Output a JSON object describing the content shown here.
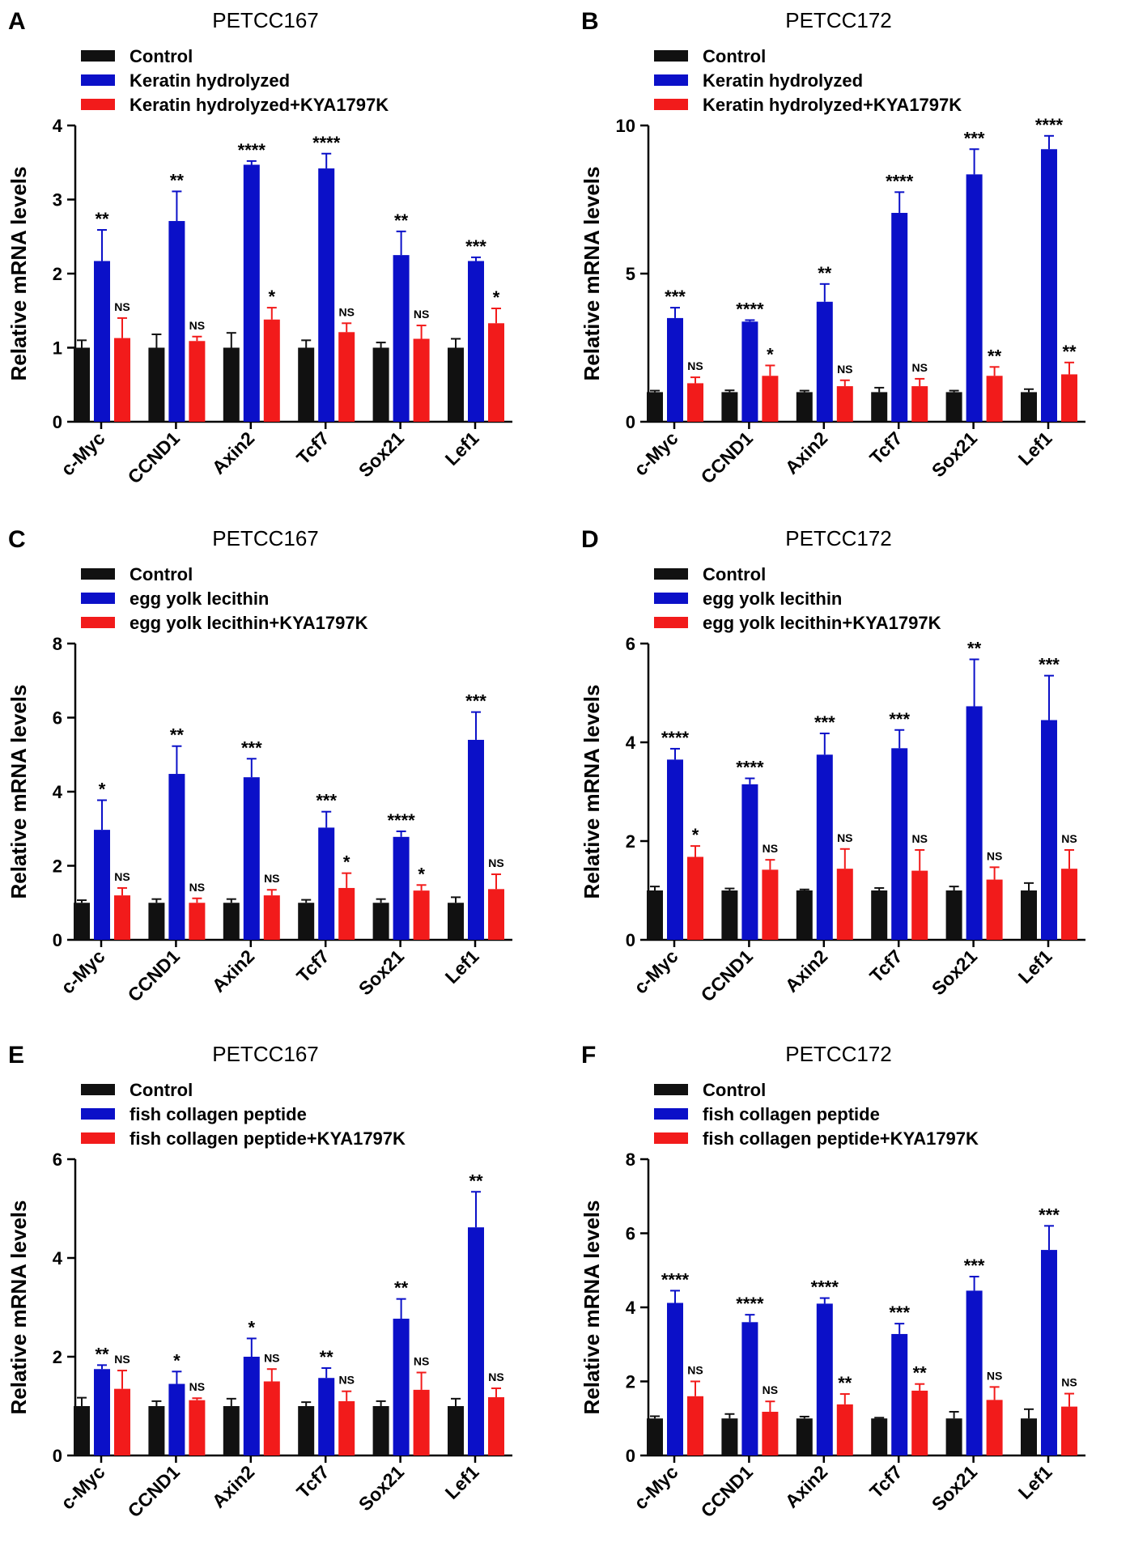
{
  "colors": {
    "control": "#111111",
    "treatment": "#0b10c8",
    "inhibitor": "#f21b1b"
  },
  "chart_data": [
    {
      "panel": "A",
      "type": "bar",
      "title": "PETCC167",
      "ylabel": "Relative mRNA levels",
      "ylim": [
        0,
        4
      ],
      "yticks": [
        0,
        1,
        2,
        3,
        4
      ],
      "categories": [
        "c-Myc",
        "CCND1",
        "Axin2",
        "Tcf7",
        "Sox21",
        "Lef1"
      ],
      "series": [
        {
          "name": "Control",
          "values": [
            1,
            1,
            1,
            1,
            1,
            1
          ],
          "errors": [
            0.1,
            0.18,
            0.2,
            0.1,
            0.07,
            0.12
          ],
          "sig": [
            "",
            "",
            "",
            "",
            "",
            ""
          ]
        },
        {
          "name": "Keratin hydrolyzed",
          "values": [
            2.17,
            2.71,
            3.47,
            3.42,
            2.25,
            2.17
          ],
          "errors": [
            0.42,
            0.4,
            0.05,
            0.2,
            0.32,
            0.05
          ],
          "sig": [
            "**",
            "**",
            "****",
            "****",
            "**",
            "***"
          ]
        },
        {
          "name": "Keratin hydrolyzed+KYA1797K",
          "values": [
            1.13,
            1.09,
            1.38,
            1.21,
            1.12,
            1.33
          ],
          "errors": [
            0.27,
            0.06,
            0.16,
            0.12,
            0.18,
            0.2
          ],
          "sig": [
            "NS",
            "NS",
            "*",
            "NS",
            "NS",
            "*"
          ]
        }
      ]
    },
    {
      "panel": "B",
      "type": "bar",
      "title": "PETCC172",
      "ylabel": "Relative mRNA levels",
      "ylim": [
        0,
        10
      ],
      "yticks": [
        0,
        5,
        10
      ],
      "categories": [
        "c-Myc",
        "CCND1",
        "Axin2",
        "Tcf7",
        "Sox21",
        "Lef1"
      ],
      "series": [
        {
          "name": "Control",
          "values": [
            1,
            1,
            1,
            1,
            1,
            1
          ],
          "errors": [
            0.05,
            0.06,
            0.05,
            0.15,
            0.05,
            0.1
          ],
          "sig": [
            "",
            "",
            "",
            "",
            "",
            ""
          ]
        },
        {
          "name": "Keratin hydrolyzed",
          "values": [
            3.5,
            3.38,
            4.05,
            7.05,
            8.35,
            9.2
          ],
          "errors": [
            0.35,
            0.05,
            0.6,
            0.7,
            0.85,
            0.45
          ],
          "sig": [
            "***",
            "****",
            "**",
            "****",
            "***",
            "****"
          ]
        },
        {
          "name": "Keratin hydrolyzed+KYA1797K",
          "values": [
            1.3,
            1.55,
            1.2,
            1.2,
            1.55,
            1.6
          ],
          "errors": [
            0.2,
            0.35,
            0.2,
            0.25,
            0.3,
            0.4
          ],
          "sig": [
            "NS",
            "*",
            "NS",
            "NS",
            "**",
            "**"
          ]
        }
      ]
    },
    {
      "panel": "C",
      "type": "bar",
      "title": "PETCC167",
      "ylabel": "Relative mRNA levels",
      "ylim": [
        0,
        8
      ],
      "yticks": [
        0,
        2,
        4,
        6,
        8
      ],
      "categories": [
        "c-Myc",
        "CCND1",
        "Axin2",
        "Tcf7",
        "Sox21",
        "Lef1"
      ],
      "series": [
        {
          "name": "Control",
          "values": [
            1,
            1,
            1,
            1,
            1,
            1
          ],
          "errors": [
            0.07,
            0.1,
            0.1,
            0.08,
            0.1,
            0.15
          ],
          "sig": [
            "",
            "",
            "",
            "",
            "",
            ""
          ]
        },
        {
          "name": "egg yolk lecithin",
          "values": [
            2.97,
            4.48,
            4.39,
            3.03,
            2.78,
            5.4
          ],
          "errors": [
            0.8,
            0.75,
            0.5,
            0.43,
            0.15,
            0.75
          ],
          "sig": [
            "*",
            "**",
            "***",
            "***",
            "****",
            "***"
          ]
        },
        {
          "name": "egg yolk lecithin+KYA1797K",
          "values": [
            1.2,
            1.0,
            1.2,
            1.4,
            1.33,
            1.37
          ],
          "errors": [
            0.2,
            0.12,
            0.15,
            0.4,
            0.15,
            0.4
          ],
          "sig": [
            "NS",
            "NS",
            "NS",
            "*",
            "*",
            "NS"
          ]
        }
      ]
    },
    {
      "panel": "D",
      "type": "bar",
      "title": "PETCC172",
      "ylabel": "Relative mRNA levels",
      "ylim": [
        0,
        6
      ],
      "yticks": [
        0,
        2,
        4,
        6
      ],
      "categories": [
        "c-Myc",
        "CCND1",
        "Axin2",
        "Tcf7",
        "Sox21",
        "Lef1"
      ],
      "series": [
        {
          "name": "Control",
          "values": [
            1,
            1,
            1,
            1,
            1,
            1
          ],
          "errors": [
            0.08,
            0.04,
            0.02,
            0.05,
            0.08,
            0.15
          ],
          "sig": [
            "",
            "",
            "",
            "",
            "",
            ""
          ]
        },
        {
          "name": "egg yolk lecithin",
          "values": [
            3.65,
            3.15,
            3.75,
            3.88,
            4.73,
            4.45
          ],
          "errors": [
            0.22,
            0.12,
            0.43,
            0.37,
            0.95,
            0.9
          ],
          "sig": [
            "****",
            "****",
            "***",
            "***",
            "**",
            "***"
          ]
        },
        {
          "name": "egg yolk lecithin+KYA1797K",
          "values": [
            1.68,
            1.42,
            1.44,
            1.4,
            1.22,
            1.44
          ],
          "errors": [
            0.22,
            0.2,
            0.4,
            0.42,
            0.25,
            0.38
          ],
          "sig": [
            "*",
            "NS",
            "NS",
            "NS",
            "NS",
            "NS"
          ]
        }
      ]
    },
    {
      "panel": "E",
      "type": "bar",
      "title": "PETCC167",
      "ylabel": "Relative mRNA levels",
      "ylim": [
        0,
        6
      ],
      "yticks": [
        0,
        2,
        4,
        6
      ],
      "categories": [
        "c-Myc",
        "CCND1",
        "Axin2",
        "Tcf7",
        "Sox21",
        "Lef1"
      ],
      "series": [
        {
          "name": "Control",
          "values": [
            1,
            1,
            1,
            1,
            1,
            1
          ],
          "errors": [
            0.17,
            0.1,
            0.15,
            0.08,
            0.1,
            0.15
          ],
          "sig": [
            "",
            "",
            "",
            "",
            "",
            ""
          ]
        },
        {
          "name": "fish collagen peptide",
          "values": [
            1.75,
            1.45,
            2.0,
            1.57,
            2.77,
            4.62
          ],
          "errors": [
            0.08,
            0.25,
            0.37,
            0.2,
            0.4,
            0.72
          ],
          "sig": [
            "**",
            "*",
            "*",
            "**",
            "**",
            "**"
          ]
        },
        {
          "name": "fish collagen peptide+KYA1797K",
          "values": [
            1.35,
            1.12,
            1.5,
            1.1,
            1.33,
            1.18
          ],
          "errors": [
            0.37,
            0.04,
            0.25,
            0.2,
            0.35,
            0.18
          ],
          "sig": [
            "NS",
            "NS",
            "NS",
            "NS",
            "NS",
            "NS"
          ]
        }
      ]
    },
    {
      "panel": "F",
      "type": "bar",
      "title": "PETCC172",
      "ylabel": "Relative mRNA levels",
      "ylim": [
        0,
        8
      ],
      "yticks": [
        0,
        2,
        4,
        6,
        8
      ],
      "categories": [
        "c-Myc",
        "CCND1",
        "Axin2",
        "Tcf7",
        "Sox21",
        "Lef1"
      ],
      "series": [
        {
          "name": "Control",
          "values": [
            1,
            1,
            1,
            1,
            1,
            1
          ],
          "errors": [
            0.06,
            0.12,
            0.05,
            0.02,
            0.18,
            0.25
          ],
          "sig": [
            "",
            "",
            "",
            "",
            "",
            ""
          ]
        },
        {
          "name": "fish collagen peptide",
          "values": [
            4.12,
            3.6,
            4.1,
            3.28,
            4.45,
            5.55
          ],
          "errors": [
            0.33,
            0.2,
            0.15,
            0.28,
            0.38,
            0.65
          ],
          "sig": [
            "****",
            "****",
            "****",
            "***",
            "***",
            "***"
          ]
        },
        {
          "name": "fish collagen peptide+KYA1797K",
          "values": [
            1.6,
            1.18,
            1.38,
            1.75,
            1.5,
            1.32
          ],
          "errors": [
            0.4,
            0.28,
            0.28,
            0.18,
            0.35,
            0.35
          ],
          "sig": [
            "NS",
            "NS",
            "**",
            "**",
            "NS",
            "NS"
          ]
        }
      ]
    }
  ]
}
